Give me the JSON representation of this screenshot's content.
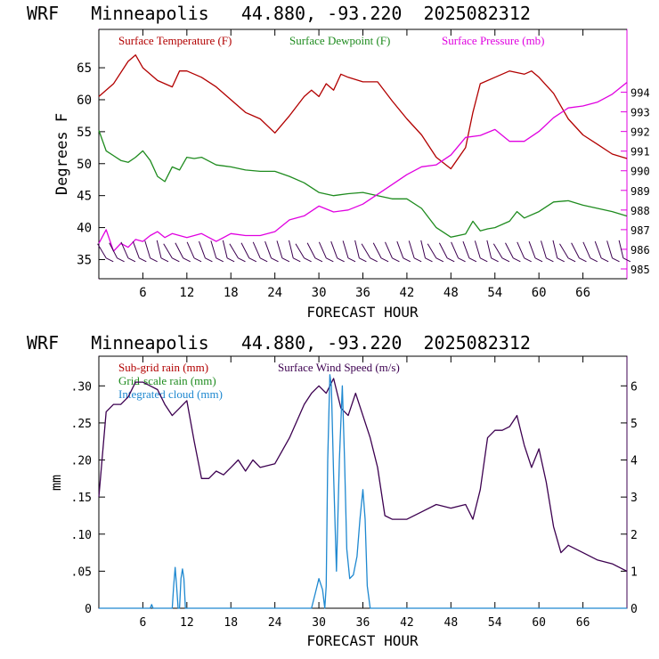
{
  "colors": {
    "temp": "#b20000",
    "dew": "#1e8b1e",
    "pres": "#e000e0",
    "wind": "#3c0050",
    "cloud": "#1e88d0",
    "grid_rain": "#1e8b1e",
    "axis": "#000000"
  },
  "chart_data": [
    {
      "type": "line",
      "title": "WRF   Minneapolis   44.880, -93.220  2025082312",
      "xlabel": "FORECAST HOUR",
      "ylabel": "Degrees F",
      "xlim": [
        0,
        72
      ],
      "ylim": [
        32,
        71
      ],
      "ylim_right": [
        984.5,
        997.2
      ],
      "xticks": [
        6,
        12,
        18,
        24,
        30,
        36,
        42,
        48,
        54,
        60,
        66
      ],
      "xtick_labels": [
        "6",
        "12",
        "18",
        "24",
        "30",
        "36",
        "42",
        "48",
        "54",
        "60",
        "66"
      ],
      "yticks": [
        35,
        40,
        45,
        50,
        55,
        60,
        65
      ],
      "ytick_labels": [
        "35",
        "40",
        "45",
        "50",
        "55",
        "60",
        "65"
      ],
      "yticks_right": [
        985,
        986,
        987,
        988,
        989,
        990,
        991,
        992,
        993,
        994
      ],
      "ytick_labels_right": [
        "985",
        "986",
        "987",
        "988",
        "989",
        "990",
        "991",
        "992",
        "993",
        "994"
      ],
      "legend": [
        "Surface Temperature (F)",
        "Surface Dewpoint (F)",
        "Surface Pressure (mb)"
      ],
      "series": [
        {
          "name": "Surface Temperature (F)",
          "axis": "left",
          "color_key": "temp",
          "x": [
            0,
            2,
            4,
            5,
            6,
            8,
            10,
            11,
            12,
            14,
            16,
            18,
            20,
            22,
            24,
            26,
            28,
            29,
            30,
            31,
            32,
            33,
            34,
            36,
            38,
            40,
            42,
            44,
            46,
            48,
            50,
            51,
            52,
            54,
            56,
            58,
            59,
            60,
            62,
            64,
            66,
            68,
            70,
            72
          ],
          "y": [
            60.5,
            62.5,
            66,
            67,
            65,
            63,
            62,
            64.5,
            64.5,
            63.5,
            62,
            60,
            58,
            57,
            54.8,
            57.5,
            60.5,
            61.5,
            60.5,
            62.5,
            61.5,
            64,
            63.5,
            62.8,
            62.8,
            59.8,
            57,
            54.5,
            51,
            49.2,
            52.5,
            58,
            62.5,
            63.5,
            64.5,
            64,
            64.5,
            63.5,
            61,
            57,
            54.5,
            53,
            51.5,
            50.8
          ]
        },
        {
          "name": "Surface Dewpoint (F)",
          "axis": "left",
          "color_key": "dew",
          "x": [
            0,
            1,
            3,
            4,
            5,
            6,
            7,
            8,
            9,
            10,
            11,
            12,
            13,
            14,
            16,
            18,
            20,
            22,
            24,
            26,
            28,
            30,
            32,
            34,
            36,
            38,
            40,
            42,
            44,
            46,
            48,
            50,
            51,
            52,
            53,
            54,
            56,
            57,
            58,
            60,
            62,
            64,
            66,
            68,
            70,
            72
          ],
          "y": [
            55.2,
            52,
            50.5,
            50.2,
            51,
            52,
            50.5,
            48,
            47.2,
            49.5,
            49,
            51,
            50.8,
            51,
            49.8,
            49.5,
            49,
            48.8,
            48.8,
            48,
            47,
            45.5,
            45,
            45.3,
            45.5,
            45,
            44.5,
            44.5,
            43,
            40,
            38.5,
            39,
            41,
            39.5,
            39.8,
            40,
            41,
            42.5,
            41.5,
            42.5,
            44,
            44.2,
            43.5,
            43,
            42.5,
            41.8
          ]
        },
        {
          "name": "Surface Pressure (mb)",
          "axis": "right",
          "color_key": "pres",
          "x": [
            0,
            1,
            2,
            3,
            4,
            5,
            6,
            7,
            8,
            9,
            10,
            12,
            14,
            16,
            18,
            20,
            22,
            24,
            26,
            28,
            30,
            32,
            34,
            36,
            38,
            40,
            42,
            44,
            46,
            48,
            50,
            52,
            54,
            56,
            58,
            60,
            62,
            64,
            66,
            68,
            70,
            72
          ],
          "y": [
            986.3,
            987,
            985.9,
            986.3,
            986.1,
            986.5,
            986.4,
            986.7,
            986.9,
            986.6,
            986.8,
            986.6,
            986.8,
            986.4,
            986.8,
            986.7,
            986.7,
            986.9,
            987.5,
            987.7,
            988.2,
            987.9,
            988,
            988.3,
            988.8,
            989.3,
            989.8,
            990.2,
            990.3,
            990.8,
            991.7,
            991.8,
            992.1,
            991.5,
            991.5,
            992.0,
            992.7,
            993.2,
            993.3,
            993.5,
            993.9,
            994.5
          ]
        }
      ],
      "wind_barbs": {
        "x_start": 1,
        "x_end": 72,
        "step": 1.5,
        "y_level": 36.2
      }
    },
    {
      "type": "line",
      "title": "WRF   Minneapolis   44.880, -93.220  2025082312",
      "xlabel": "FORECAST HOUR",
      "ylabel": "mm",
      "xlim": [
        0,
        72
      ],
      "ylim": [
        0,
        0.34
      ],
      "ylim_right": [
        0,
        6.8
      ],
      "xticks": [
        6,
        12,
        18,
        24,
        30,
        36,
        42,
        48,
        54,
        60,
        66
      ],
      "xtick_labels": [
        "6",
        "12",
        "18",
        "24",
        "30",
        "36",
        "42",
        "48",
        "54",
        "60",
        "66"
      ],
      "yticks": [
        0,
        0.05,
        0.1,
        0.15,
        0.2,
        0.25,
        0.3
      ],
      "ytick_labels": [
        "0",
        ".05",
        ".10",
        ".15",
        ".20",
        ".25",
        ".30"
      ],
      "yticks_right": [
        0,
        1,
        2,
        3,
        4,
        5,
        6
      ],
      "ytick_labels_right": [
        "0",
        "1",
        "2",
        "3",
        "4",
        "5",
        "6"
      ],
      "legend": [
        "Sub-grid rain (mm)",
        "Grid-scale rain (mm)",
        "Integrated cloud (mm)",
        "Surface Wind Speed (m/s)"
      ],
      "series": [
        {
          "name": "Surface Wind Speed (m/s)",
          "axis": "right",
          "color_key": "wind",
          "x": [
            0,
            1,
            2,
            3,
            4,
            5,
            6,
            7,
            8,
            9,
            10,
            11,
            12,
            13,
            14,
            15,
            16,
            17,
            18,
            19,
            20,
            21,
            22,
            24,
            26,
            28,
            29,
            30,
            31,
            32,
            33,
            34,
            35,
            36,
            37,
            38,
            39,
            40,
            42,
            44,
            46,
            48,
            50,
            51,
            52,
            53,
            54,
            55,
            56,
            57,
            58,
            59,
            60,
            61,
            62,
            63,
            64,
            66,
            68,
            70,
            72
          ],
          "y": [
            3.0,
            5.3,
            5.5,
            5.5,
            5.7,
            6.1,
            6.1,
            6.0,
            5.9,
            5.5,
            5.2,
            5.4,
            5.6,
            4.5,
            3.5,
            3.5,
            3.7,
            3.6,
            3.8,
            4.0,
            3.7,
            4.0,
            3.8,
            3.9,
            4.6,
            5.5,
            5.8,
            6.0,
            5.8,
            6.2,
            5.4,
            5.2,
            5.8,
            5.2,
            4.6,
            3.8,
            2.5,
            2.4,
            2.4,
            2.6,
            2.8,
            2.7,
            2.8,
            2.4,
            3.2,
            4.6,
            4.8,
            4.8,
            4.9,
            5.2,
            4.4,
            3.8,
            4.3,
            3.4,
            2.2,
            1.5,
            1.7,
            1.5,
            1.3,
            1.2,
            1.0
          ]
        },
        {
          "name": "Integrated cloud (mm)",
          "axis": "left",
          "color_key": "cloud",
          "x": [
            0,
            7,
            7.2,
            7.4,
            8,
            10,
            10.2,
            10.4,
            10.6,
            10.8,
            11,
            11.2,
            11.4,
            11.6,
            11.8,
            12,
            28,
            29,
            29.5,
            30,
            30.5,
            30.8,
            31,
            31.2,
            31.5,
            31.7,
            32,
            32.4,
            32.8,
            33.2,
            33.5,
            33.8,
            34.2,
            34.7,
            35.2,
            35.6,
            36,
            36.3,
            36.6,
            37,
            37.5,
            72
          ],
          "y": [
            0,
            0,
            0.005,
            0,
            0,
            0,
            0.03,
            0.055,
            0.03,
            0,
            0,
            0.04,
            0.053,
            0.04,
            0,
            0,
            0,
            0,
            0.02,
            0.04,
            0.025,
            0,
            0.03,
            0.2,
            0.315,
            0.3,
            0.18,
            0.05,
            0.2,
            0.3,
            0.2,
            0.08,
            0.04,
            0.045,
            0.07,
            0.12,
            0.16,
            0.12,
            0.03,
            0,
            0,
            0
          ]
        }
      ]
    }
  ]
}
